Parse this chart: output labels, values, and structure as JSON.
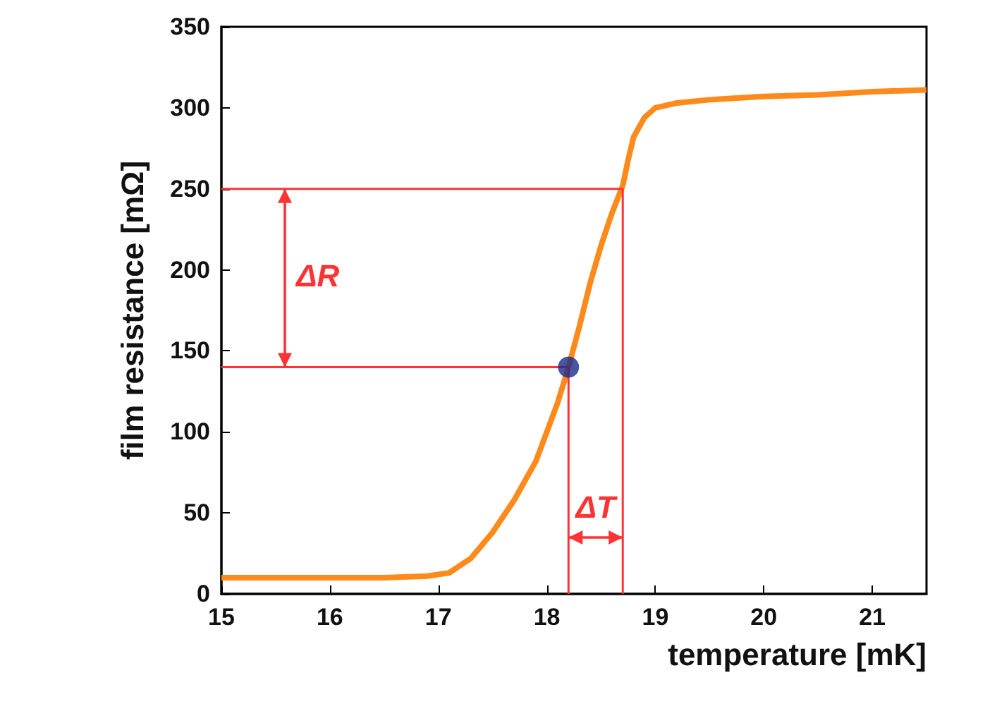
{
  "chart_data": {
    "type": "line",
    "xlabel": "temperature [mK]",
    "ylabel": "film resistance [mΩ]",
    "xlim": [
      15,
      21.5
    ],
    "xticks": [
      15,
      16,
      17,
      18,
      19,
      20,
      21
    ],
    "ylim": [
      0,
      350
    ],
    "yticks": [
      0,
      50,
      100,
      150,
      200,
      250,
      300,
      350
    ],
    "grid": false,
    "marker": "none",
    "line_style": "solid",
    "series": [
      {
        "color": "#ff8a1c",
        "x": [
          15,
          15.5,
          16,
          16.5,
          16.9,
          17.1,
          17.3,
          17.5,
          17.7,
          17.9,
          18.0,
          18.1,
          18.2,
          18.3,
          18.4,
          18.5,
          18.6,
          18.7,
          18.75,
          18.8,
          18.9,
          19.0,
          19.2,
          19.5,
          20,
          20.5,
          21,
          21.5
        ],
        "values": [
          10,
          10,
          10,
          10,
          11,
          13,
          22,
          38,
          58,
          82,
          100,
          118,
          140,
          165,
          192,
          215,
          235,
          252,
          268,
          282,
          294,
          300,
          303,
          305,
          307,
          308,
          310,
          311
        ]
      },
      {
        "color": "#ff3333",
        "x": [
          15,
          18.7
        ],
        "values": [
          250,
          250
        ]
      },
      {
        "color": "#ff3333",
        "x": [
          15,
          18.2
        ],
        "values": [
          140,
          140
        ]
      },
      {
        "color": "#ff3333",
        "x": [
          18.2,
          18.2
        ],
        "values": [
          0,
          140
        ]
      },
      {
        "color": "#ff3333",
        "x": [
          18.7,
          18.7
        ],
        "values": [
          0,
          250
        ]
      },
      {
        "type": "scatter",
        "color": "#1a2a8c",
        "marker": "circle",
        "x": [
          18.2
        ],
        "values": [
          140
        ]
      }
    ],
    "annotations": [
      "ΔR",
      "ΔT"
    ]
  }
}
